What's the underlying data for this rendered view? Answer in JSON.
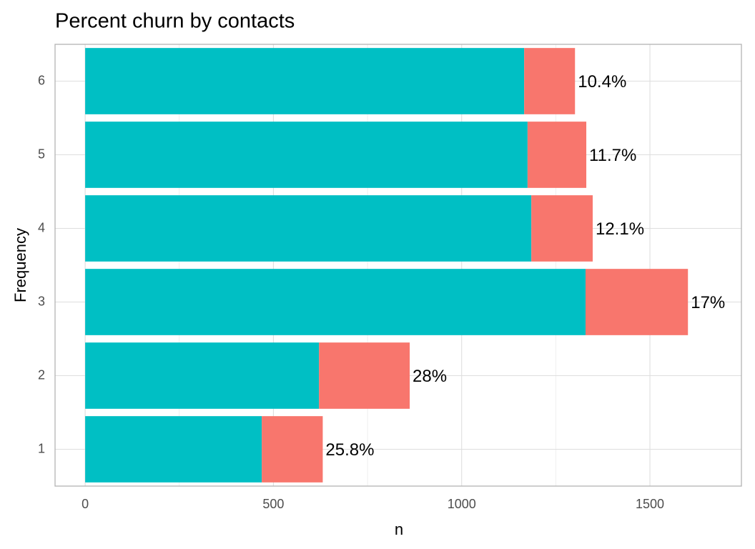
{
  "chart_data": {
    "type": "stacked-barh",
    "title": "Percent churn by contacts",
    "xlabel": "n",
    "ylabel": "Frequency",
    "categories": [
      "1",
      "2",
      "3",
      "4",
      "5",
      "6"
    ],
    "series": [
      {
        "color": "#00bfc4",
        "values": [
          469,
          621,
          1329,
          1185,
          1175,
          1166
        ]
      },
      {
        "color": "#f8766d",
        "values": [
          162,
          241,
          272,
          163,
          156,
          135
        ]
      }
    ],
    "bar_labels": [
      "25.8%",
      "28%",
      "17%",
      "12.1%",
      "11.7%",
      "10.4%"
    ],
    "xlim": [
      -80,
      1743
    ],
    "xticks": [
      0,
      500,
      1000,
      1500
    ],
    "xminor": [
      250,
      750,
      1250
    ],
    "grid": true
  }
}
